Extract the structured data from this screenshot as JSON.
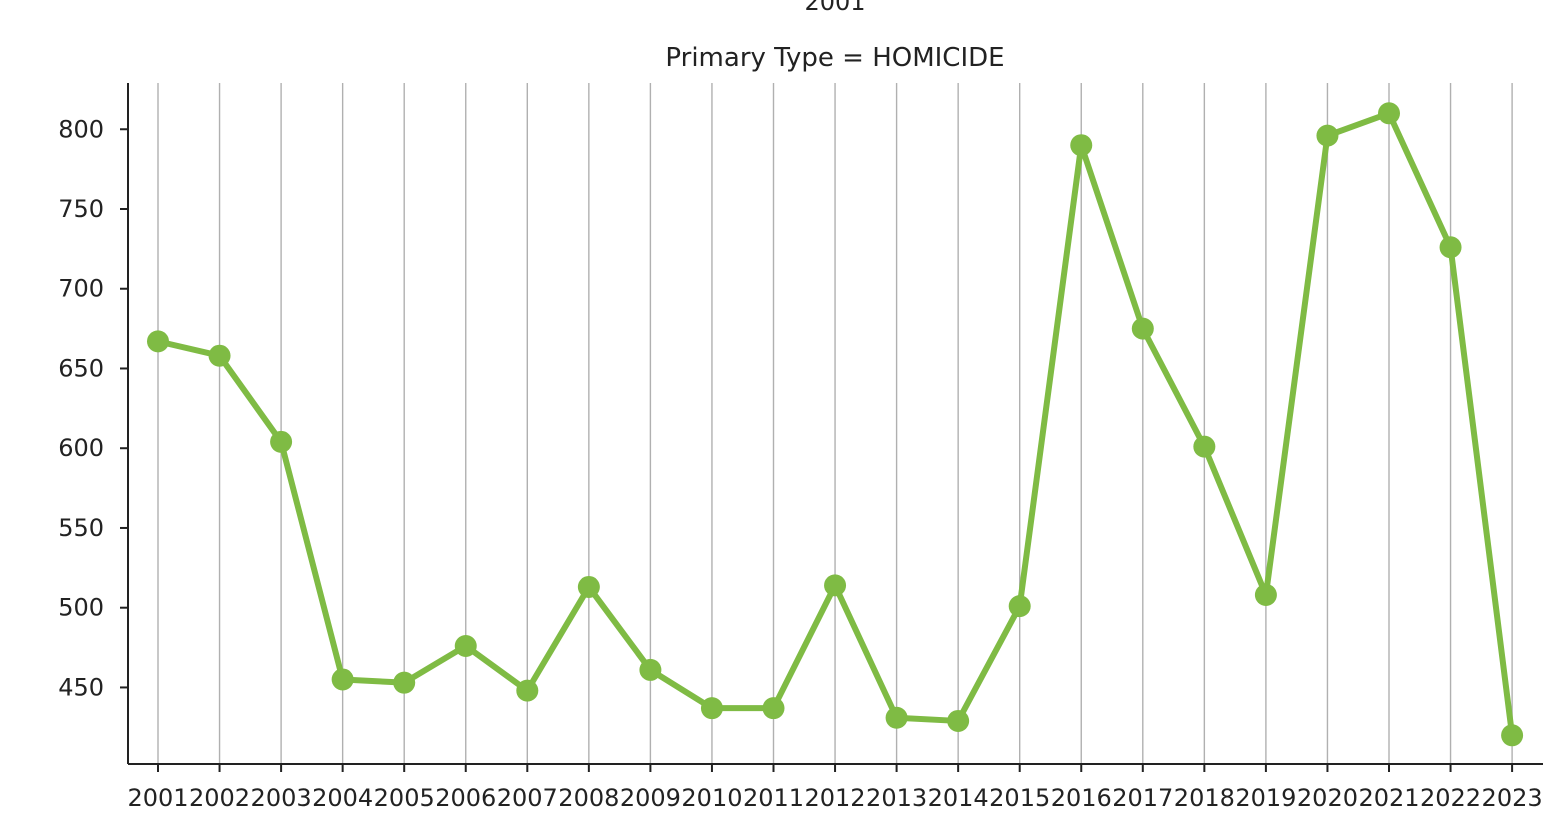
{
  "header": {
    "overflow_title": "2001"
  },
  "chart_data": {
    "type": "line",
    "title": "Primary Type = HOMICIDE",
    "xlabel": "",
    "ylabel": "",
    "x": [
      "2001",
      "2002",
      "2003",
      "2004",
      "2005",
      "2006",
      "2007",
      "2008",
      "2009",
      "2010",
      "2011",
      "2012",
      "2013",
      "2014",
      "2015",
      "2016",
      "2017",
      "2018",
      "2019",
      "2020",
      "2021",
      "2022",
      "2023"
    ],
    "series": [
      {
        "values": [
          667,
          658,
          604,
          455,
          453,
          476,
          448,
          513,
          461,
          437,
          437,
          514,
          431,
          429,
          501,
          790,
          675,
          601,
          508,
          796,
          810,
          726,
          420
        ]
      }
    ],
    "yticks": [
      450,
      500,
      550,
      600,
      650,
      700,
      750,
      800
    ],
    "ylim": [
      402,
      829
    ],
    "grid": "vertical",
    "legend": "none",
    "color": "#7fbb44"
  }
}
